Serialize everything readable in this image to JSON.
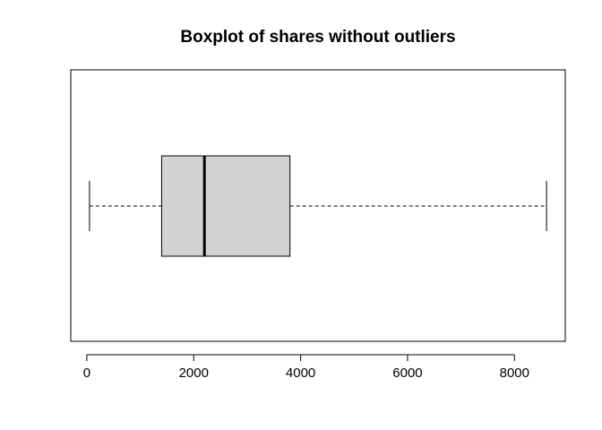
{
  "chart_data": {
    "type": "boxplot",
    "orientation": "horizontal",
    "title": "Boxplot of shares without outliers",
    "xlabel": "",
    "ylabel": "",
    "xlim": [
      -300,
      8950
    ],
    "x_ticks": [
      0,
      2000,
      4000,
      6000,
      8000
    ],
    "x_tick_labels": [
      "0",
      "2000",
      "4000",
      "6000",
      "8000"
    ],
    "grid": false,
    "box": {
      "min": 50,
      "q1": 1400,
      "median": 2200,
      "q3": 3800,
      "max": 8600,
      "fill_color": "#d3d3d3"
    }
  }
}
